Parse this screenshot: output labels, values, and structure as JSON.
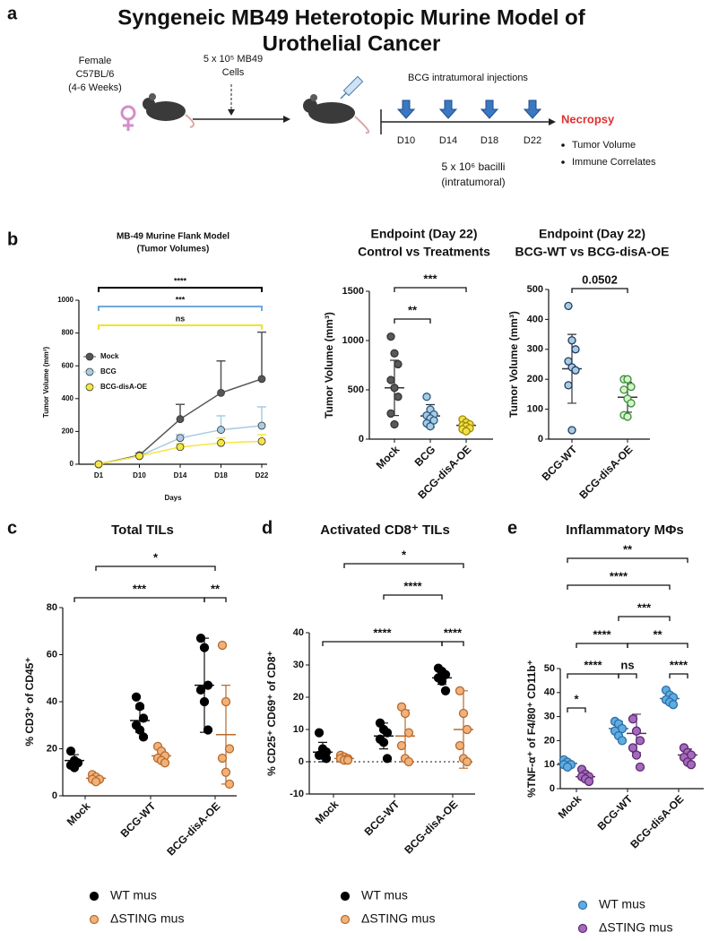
{
  "panel_labels": [
    "a",
    "b",
    "c",
    "d",
    "e"
  ],
  "diagram": {
    "title_lines": [
      "Syngeneic MB49 Heterotopic Murine Model of",
      "Urothelial Cancer"
    ],
    "mouse_label": [
      "Female",
      "C57BL/6",
      "(4-6 Weeks)"
    ],
    "injection": [
      "5 x 10⁵ MB49",
      "Cells"
    ],
    "treatment": "BCG intratumoral injections",
    "days": [
      "D10",
      "D14",
      "D18",
      "D22"
    ],
    "dose": [
      "5 x 10⁶ bacilli",
      "(intratumoral)"
    ],
    "endpoint": "Necropsy",
    "readouts": [
      "Tumor Volume",
      "Immune Correlates"
    ]
  },
  "chart_data": [
    {
      "type": "line",
      "title": "MB-49  Murine Flank Model",
      "subtitle": "(Tumor Volumes)",
      "x_label": "Days",
      "y_label": "Tumor  Volume (mm³)",
      "categories": [
        "D1",
        "D10",
        "D14",
        "D18",
        "D22"
      ],
      "ylim": [
        0,
        1000
      ],
      "yticks": [
        0,
        200,
        400,
        600,
        800,
        1000
      ],
      "series": [
        {
          "name": "Mock",
          "color": "#555555",
          "values": [
            0,
            55,
            275,
            435,
            520
          ],
          "errors": [
            0,
            10,
            90,
            195,
            285
          ]
        },
        {
          "name": "BCG",
          "color": "#a9cce3",
          "values": [
            0,
            50,
            160,
            210,
            235
          ],
          "errors": [
            0,
            10,
            20,
            85,
            115
          ]
        },
        {
          "name": "BCG-disA-OE",
          "color": "#f5e642",
          "values": [
            0,
            50,
            105,
            130,
            140
          ],
          "errors": [
            0,
            10,
            20,
            30,
            40
          ]
        }
      ],
      "significance": [
        "****",
        "***",
        "ns"
      ],
      "significance_colors": [
        "#000000",
        "#6fa8dc",
        "#f2e22a"
      ]
    },
    {
      "type": "dot",
      "title": "Endpoint (Day 22)",
      "subtitle": "Control vs Treatments",
      "y_label": "Tumor  Volume (mm³)",
      "categories": [
        "Mock",
        "BCG",
        "BCG-disA-OE"
      ],
      "ylim": [
        0,
        1500
      ],
      "yticks": [
        0,
        500,
        1000,
        1500
      ],
      "series": [
        {
          "colors": [
            "#595959",
            "#a9cce3",
            "#f0e04a"
          ],
          "edge_colors": [
            "#333333",
            "#2a5b84",
            "#a08a00"
          ],
          "values": [
            [
              1040,
              870,
              760,
              600,
              520,
              430,
              260,
              150
            ],
            [
              430,
              300,
              250,
              240,
              210,
              190,
              160,
              130
            ],
            [
              200,
              170,
              150,
              140,
              130,
              110,
              100,
              80
            ]
          ],
          "means": [
            520,
            235,
            140
          ],
          "sds": [
            280,
            115,
            40
          ]
        }
      ],
      "significance": [
        "***",
        "**"
      ]
    },
    {
      "type": "dot",
      "title": "Endpoint (Day 22)",
      "subtitle": "BCG-WT vs BCG-disA-OE",
      "y_label": "Tumor  Volume (mm³)",
      "categories": [
        "BCG-WT",
        "BCG-disA-OE"
      ],
      "ylim": [
        0,
        500
      ],
      "yticks": [
        0,
        100,
        200,
        300,
        400,
        500
      ],
      "series": [
        {
          "colors": [
            "#a9cce3",
            "#d5f5c8"
          ],
          "edge_colors": [
            "#1f3b63",
            "#3c8c3c"
          ],
          "values": [
            [
              445,
              330,
              300,
              260,
              240,
              230,
              180,
              30
            ],
            [
              200,
              200,
              175,
              165,
              135,
              120,
              80,
              75
            ]
          ],
          "means": [
            235,
            140
          ],
          "sds": [
            115,
            50
          ]
        }
      ],
      "significance": [
        "0.0502"
      ]
    },
    {
      "type": "dot",
      "title": "Total  TILs",
      "y_label": "% CD3⁺ of CD45⁺",
      "categories": [
        "Mock",
        "BCG-WT",
        "BCG-disA-OE"
      ],
      "ylim": [
        0,
        80
      ],
      "yticks": [
        0,
        20,
        40,
        60,
        80
      ],
      "series": [
        {
          "name": "WT mus",
          "color": "#000000",
          "edge_color": "#000000",
          "values": [
            [
              19,
              15,
              14,
              13,
              12
            ],
            [
              42,
              38,
              33,
              30,
              28,
              25
            ],
            [
              67,
              63,
              47,
              45,
              40,
              28
            ]
          ],
          "means": [
            15,
            32,
            47
          ],
          "sds": [
            2.5,
            5,
            20
          ]
        },
        {
          "name": "ΔSTING mus",
          "color": "#f0b27a",
          "edge_color": "#b86a2c",
          "values": [
            [
              9,
              8,
              7,
              7,
              6
            ],
            [
              21,
              19,
              17,
              16,
              15,
              14
            ],
            [
              64,
              40,
              20,
              16,
              10,
              5
            ]
          ],
          "means": [
            7.5,
            17,
            26
          ],
          "sds": [
            1,
            2.5,
            21
          ]
        }
      ],
      "significance": [
        "*",
        "***",
        "**"
      ]
    },
    {
      "type": "dot",
      "title": "Activated  CD8⁺ TILs",
      "y_label": "% CD25⁺ CD69⁺ of CD8⁺",
      "categories": [
        "Mock",
        "BCG-WT",
        "BCG-disA-OE"
      ],
      "ylim": [
        -10,
        40
      ],
      "yticks": [
        -10,
        0,
        10,
        20,
        30,
        40
      ],
      "series": [
        {
          "name": "WT mus",
          "color": "#000000",
          "edge_color": "#000000",
          "values": [
            [
              9,
              4,
              3,
              2,
              2,
              1
            ],
            [
              12,
              10,
              9,
              7,
              6,
              1
            ],
            [
              29,
              28,
              27,
              26,
              25,
              22
            ]
          ],
          "means": [
            3,
            8,
            26
          ],
          "sds": [
            3,
            4,
            2
          ]
        },
        {
          "name": "ΔSTING mus",
          "color": "#f0b27a",
          "edge_color": "#b86a2c",
          "values": [
            [
              2,
              1.5,
              1,
              1,
              0.5,
              0.5
            ],
            [
              17,
              15,
              9,
              5,
              1,
              0
            ],
            [
              22,
              15,
              10,
              5,
              1,
              0
            ]
          ],
          "means": [
            1,
            8,
            10
          ],
          "sds": [
            0.6,
            8,
            12
          ]
        }
      ],
      "significance": [
        "*",
        "****",
        "****",
        "****"
      ]
    },
    {
      "type": "dot",
      "title": "Inflammatory MΦs",
      "y_label": "%TNF-α⁺ of F4/80⁺ CD11b⁺",
      "categories": [
        "Mock",
        "BCG-WT",
        "BCG-disA-OE"
      ],
      "ylim": [
        0,
        50
      ],
      "yticks": [
        0,
        10,
        20,
        30,
        40,
        50
      ],
      "series": [
        {
          "name": "WT mus",
          "color": "#5dade2",
          "edge_color": "#2e6da4",
          "values": [
            [
              12,
              11,
              10,
              10,
              9
            ],
            [
              28,
              27,
              25,
              24,
              22,
              20
            ],
            [
              41,
              39,
              38,
              37,
              36,
              35
            ]
          ],
          "means": [
            10.5,
            25,
            37.5
          ],
          "sds": [
            1,
            3,
            2
          ]
        },
        {
          "name": "ΔSTING mus",
          "color": "#a569bd",
          "edge_color": "#5b2c6f",
          "values": [
            [
              8,
              6,
              5,
              5,
              4,
              3
            ],
            [
              29,
              24,
              20,
              17,
              14,
              9
            ],
            [
              17,
              15,
              14,
              13,
              11,
              10
            ]
          ],
          "means": [
            5,
            23,
            14
          ],
          "sds": [
            1.5,
            8,
            2.5
          ]
        }
      ],
      "significance": [
        "**",
        "****",
        "***",
        "****",
        "**",
        "****",
        "ns",
        "****",
        "*"
      ]
    }
  ]
}
